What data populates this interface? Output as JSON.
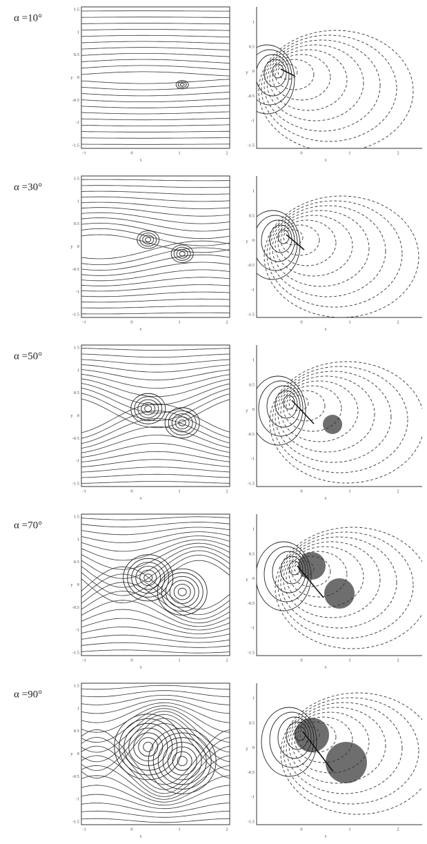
{
  "rows": [
    {
      "label": "α =10°"
    },
    {
      "label": "α =30°"
    },
    {
      "label": "α =50°"
    },
    {
      "label": "α =70°"
    },
    {
      "label": "α =90°"
    }
  ],
  "axes": {
    "x_label": "x",
    "y_label": "y",
    "left_yticks": [
      "1.5",
      "1",
      "0.5",
      "0",
      "-0.5",
      "-1",
      "-1.5"
    ],
    "left_xticks": [
      "-1",
      "0",
      "1",
      "2"
    ],
    "right_yticks": [
      "1",
      "0.5",
      "0",
      "-0.5",
      "-1",
      "-1.5"
    ],
    "right_xticks": [
      "0",
      "1",
      "2"
    ]
  }
}
